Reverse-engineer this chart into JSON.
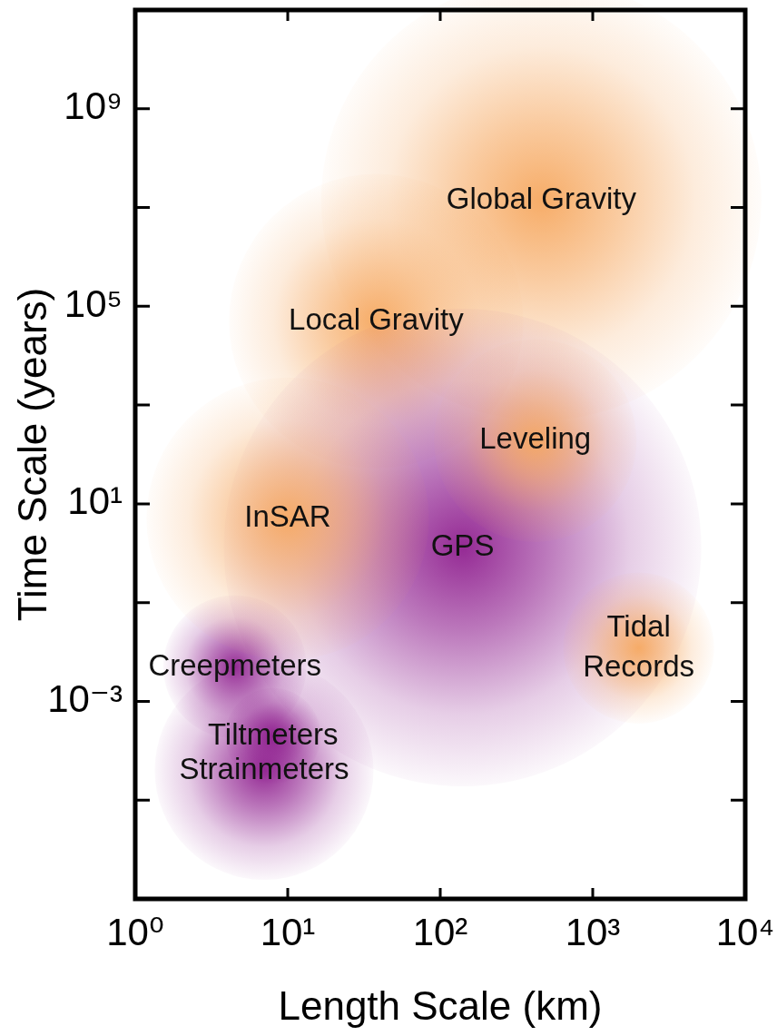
{
  "chart_data": {
    "type": "bubble",
    "xlabel": "Length Scale (km)",
    "ylabel": "Time Scale (years)",
    "log": "xy",
    "xlim": [
      1,
      10000
    ],
    "ylim": [
      1e-07,
      100000000000.0
    ],
    "xticks": [
      {
        "value": 1,
        "label": "10⁰"
      },
      {
        "value": 10,
        "label": "10¹"
      },
      {
        "value": 100,
        "label": "10²"
      },
      {
        "value": 1000,
        "label": "10³"
      },
      {
        "value": 10000,
        "label": "10⁴"
      }
    ],
    "yticks": [
      {
        "value": 1e-05,
        "label": null
      },
      {
        "value": 0.001,
        "label": "10⁻³"
      },
      {
        "value": 0.1,
        "label": null
      },
      {
        "value": 10,
        "label": "10¹"
      },
      {
        "value": 1000,
        "label": null
      },
      {
        "value": 100000,
        "label": "10⁵"
      },
      {
        "value": 10000000,
        "label": null
      },
      {
        "value": 1000000000,
        "label": "10⁹"
      }
    ],
    "series": [
      {
        "name": "Global Gravity",
        "color": "#f6a860",
        "x": [
          460
        ],
        "values": [
          14000000.0
        ],
        "sizes": [
          0.85
        ]
      },
      {
        "name": "Local Gravity",
        "color": "#f6a860",
        "x": [
          38
        ],
        "values": [
          50000.0
        ],
        "sizes": [
          0.38
        ]
      },
      {
        "name": "Strainmeters",
        "color": "#8f1f8f",
        "x": [
          7
        ],
        "values": [
          4e-05
        ],
        "sizes": [
          0.21
        ]
      },
      {
        "name": "Creepmeters",
        "color": "#8f1f8f",
        "x": [
          4.5
        ],
        "values": [
          0.005
        ],
        "sizes": [
          0.09
        ]
      },
      {
        "name": "Tiltmeters",
        "color": "#8f1f8f",
        "x": [
          8
        ],
        "values": [
          0.0002
        ],
        "sizes": [
          0.04
        ]
      },
      {
        "name": "GPS",
        "color": "#8f1f8f",
        "x": [
          140
        ],
        "values": [
          1.3
        ],
        "sizes": [
          1
        ]
      },
      {
        "name": "InSAR",
        "color": "#f6a860",
        "x": [
          10
        ],
        "values": [
          5
        ],
        "sizes": [
          0.35
        ]
      },
      {
        "name": "Leveling",
        "color": "#f6a860",
        "x": [
          420
        ],
        "values": [
          190
        ],
        "sizes": [
          0.18
        ]
      },
      {
        "name": "Tidal Records",
        "color": "#f6a860",
        "x": [
          2000
        ],
        "values": [
          0.012
        ],
        "sizes": [
          0.1
        ]
      }
    ]
  }
}
